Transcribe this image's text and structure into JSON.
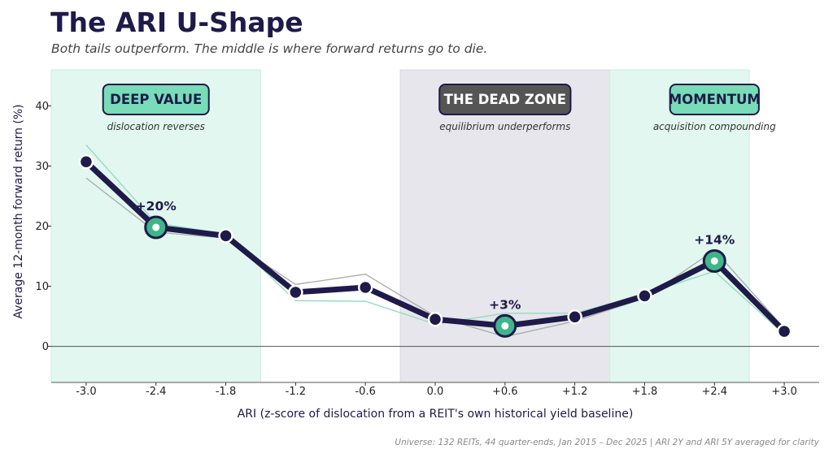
{
  "header": {
    "title": "The ARI U-Shape",
    "subtitle": "Both tails outperform. The middle is where forward returns go to die.",
    "footnote": "Universe: 132 REITs, 44 quarter-ends, Jan 2015 – Dec 2025  |  ARI 2Y and ARI 5Y averaged for clarity"
  },
  "colors": {
    "main_line": "#1e1a4a",
    "highlight": "#3fb68a",
    "band_green": "#e2f7ef",
    "band_gray": "#e7e6ec",
    "box_green": "#78dcb8",
    "box_dark": "#555555",
    "gray_line": "#a9a9a9",
    "green_line": "#8fd9bd"
  },
  "chart_data": {
    "type": "line",
    "title": "The ARI U-Shape",
    "xlabel": "ARI  (z-score of dislocation from a REIT's own historical yield baseline)",
    "ylabel": "Average 12-month forward return (%)",
    "xlim": [
      -3.3,
      3.3
    ],
    "ylim": [
      -6,
      46
    ],
    "x": [
      -3.0,
      -2.4,
      -1.8,
      -1.2,
      -0.6,
      0.0,
      0.6,
      1.2,
      1.8,
      2.4,
      3.0
    ],
    "x_tick_labels": [
      "-3.0",
      "-2.4",
      "-1.8",
      "-1.2",
      "-0.6",
      "0.0",
      "+0.6",
      "+1.2",
      "+1.8",
      "+2.4",
      "+3.0"
    ],
    "y_ticks": [
      0,
      10,
      20,
      30,
      40
    ],
    "series": [
      {
        "values": [
          30.7,
          19.8,
          18.4,
          9.0,
          9.8,
          4.5,
          3.4,
          4.9,
          8.4,
          14.2,
          2.5
        ]
      },
      {
        "values": [
          28.0,
          19.0,
          18.0,
          10.3,
          12.0,
          5.0,
          1.6,
          4.2,
          8.0,
          16.0,
          3.0
        ]
      },
      {
        "values": [
          33.5,
          20.5,
          18.7,
          7.6,
          7.5,
          3.7,
          5.5,
          5.5,
          8.7,
          12.5,
          2.0
        ]
      }
    ],
    "highlights": [
      {
        "x": -2.4,
        "value": 19.8,
        "label": "+20%"
      },
      {
        "x": 0.6,
        "value": 3.4,
        "label": "+3%"
      },
      {
        "x": 2.4,
        "value": 14.2,
        "label": "+14%"
      }
    ],
    "zones": [
      {
        "name": "DEEP VALUE",
        "caption": "dislocation reverses",
        "x_range": [
          -3.3,
          -1.5
        ],
        "style": "green"
      },
      {
        "name": "THE DEAD ZONE",
        "caption": "equilibrium underperforms",
        "x_range": [
          -0.3,
          1.5
        ],
        "style": "gray"
      },
      {
        "name": "MOMENTUM",
        "caption": "acquisition compounding",
        "x_range": [
          1.5,
          2.7
        ],
        "style": "green"
      }
    ],
    "grid": false,
    "zero_line": true
  }
}
